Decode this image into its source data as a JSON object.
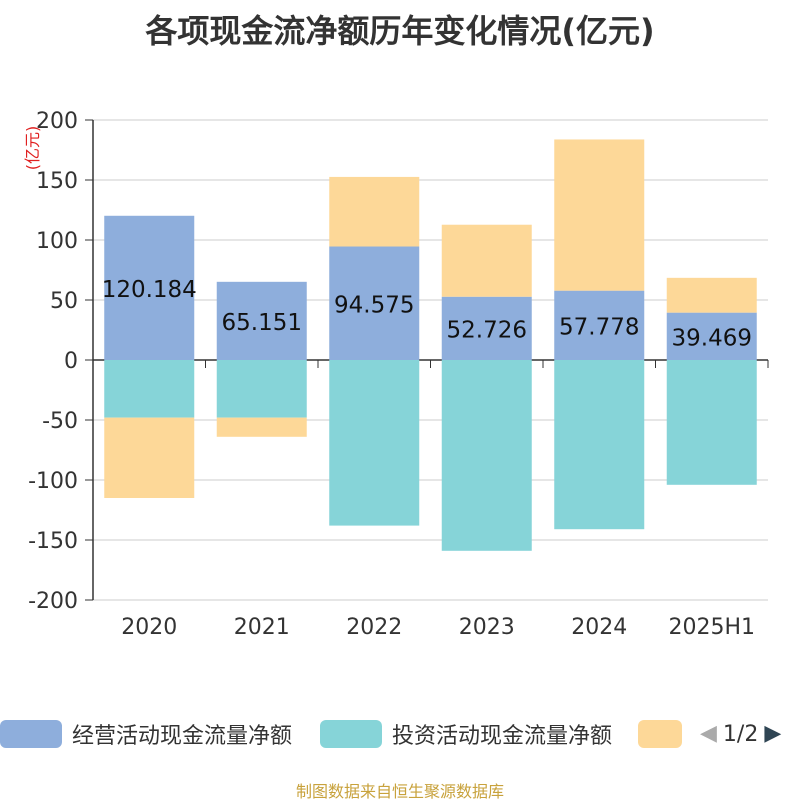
{
  "chart_data": {
    "type": "bar",
    "stacked": true,
    "title": "各项现金流净额历年变化情况(亿元)",
    "ylabel": "(亿元)",
    "ylim": [
      -200,
      200
    ],
    "yticks": [
      200,
      150,
      100,
      50,
      0,
      -50,
      -100,
      -150,
      -200
    ],
    "categories": [
      "2020",
      "2021",
      "2022",
      "2023",
      "2024",
      "2025H1"
    ],
    "grid": true,
    "series": [
      {
        "name": "经营活动现金流量净额",
        "color": "#8eaedc",
        "values": [
          120.184,
          65.151,
          94.575,
          52.726,
          57.778,
          39.469
        ],
        "labels": [
          "120.184",
          "65.151",
          "94.575",
          "52.726",
          "57.778",
          "39.469"
        ]
      },
      {
        "name": "投资活动现金流量净额",
        "color": "#86d4d8",
        "values": [
          -48,
          -48,
          -138,
          -159,
          -141,
          -104
        ]
      },
      {
        "name": "",
        "color": "#fdd898",
        "values": [
          -67,
          -16,
          58,
          60,
          126,
          29
        ]
      }
    ]
  },
  "legend": {
    "items": [
      {
        "label": "经营活动现金流量净额",
        "color": "#8eaedc"
      },
      {
        "label": "投资活动现金流量净额",
        "color": "#86d4d8"
      },
      {
        "label": "",
        "color": "#fdd898"
      }
    ],
    "page_text": "1/2",
    "prev_icon": "◀",
    "next_icon": "▶"
  },
  "source": "制图数据来自恒生聚源数据库"
}
